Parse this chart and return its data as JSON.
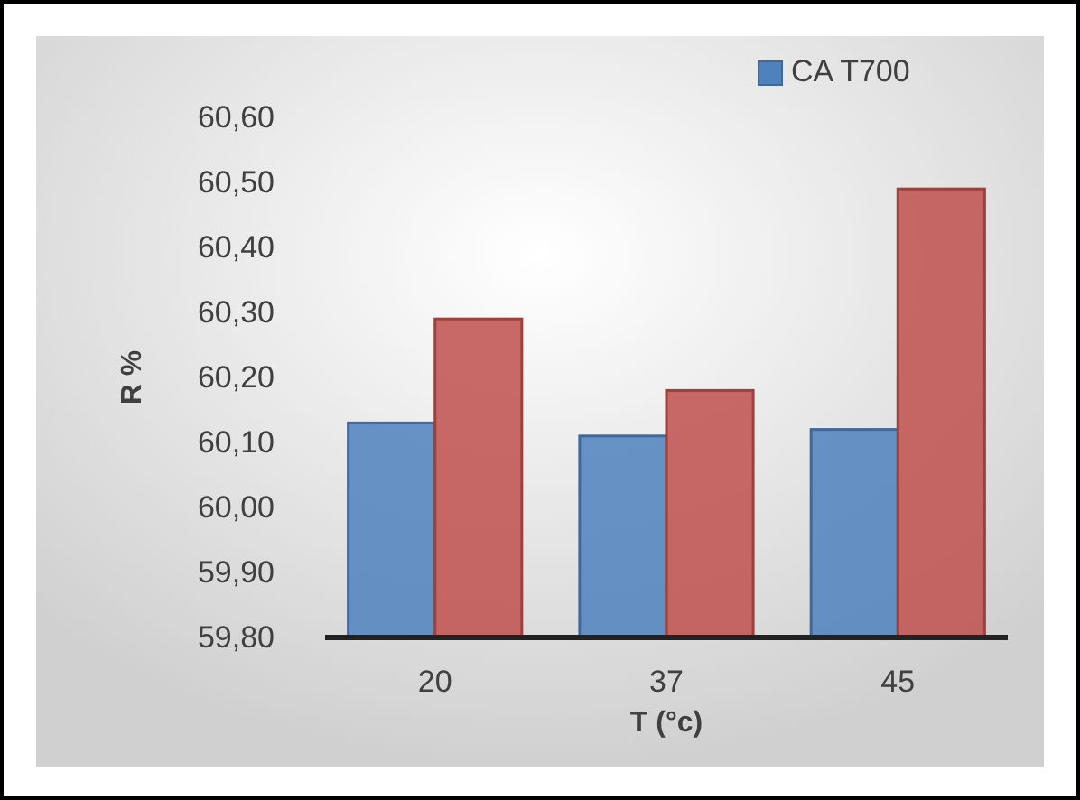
{
  "chart_data": {
    "type": "bar",
    "xlabel": "T (°c)",
    "ylabel": "R %",
    "categories": [
      "20",
      "37",
      "45"
    ],
    "series": [
      {
        "name": "CA T700",
        "color": "#4f81bd",
        "values": [
          60.13,
          60.11,
          60.12
        ]
      },
      {
        "color": "#c0504d",
        "values": [
          60.29,
          60.18,
          60.49
        ]
      }
    ],
    "ylim": [
      59.8,
      60.6
    ],
    "yticks": [
      {
        "value": 59.8,
        "label": "59,80"
      },
      {
        "value": 59.9,
        "label": "59,90"
      },
      {
        "value": 60.0,
        "label": "60,00"
      },
      {
        "value": 60.1,
        "label": "60,10"
      },
      {
        "value": 60.2,
        "label": "60,20"
      },
      {
        "value": 60.3,
        "label": "60,30"
      },
      {
        "value": 60.4,
        "label": "60,40"
      },
      {
        "value": 60.5,
        "label": "60,50"
      },
      {
        "value": 60.6,
        "label": "60,60"
      }
    ],
    "grid": false,
    "legend": "top right"
  }
}
